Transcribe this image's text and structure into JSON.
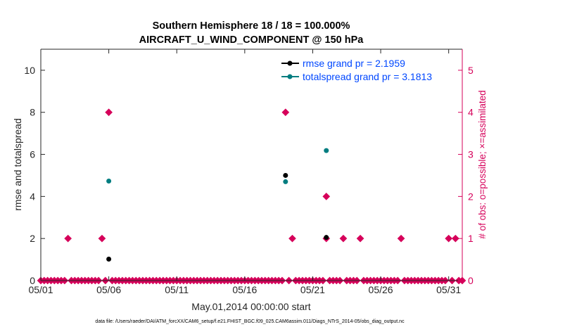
{
  "chart_data": {
    "type": "scatter",
    "title": "Southern Hemisphere 18 / 18 = 100.000%",
    "subtitle": "AIRCRAFT_U_WIND_COMPONENT @ 150 hPa",
    "xlabel": "May.01,2014 00:00:00 start",
    "ylabel_left": "rmse and totalspread",
    "ylabel_right": "# of obs: o=possible; ×=assimilated",
    "footer": "data file: /Users/raeder/DAI/ATM_forcXX/CAM6_setup/f.e21.FHIST_BGC.f09_025.CAM6assim.011/Diags_NTrS_2014-05/obs_diag_output.nc",
    "xlim": [
      1,
      32
    ],
    "ylim_left": [
      0,
      11
    ],
    "ylim_right": [
      0,
      5.5
    ],
    "x_ticks": [
      {
        "value": 1,
        "label": "05/01"
      },
      {
        "value": 6,
        "label": "05/06"
      },
      {
        "value": 11,
        "label": "05/11"
      },
      {
        "value": 16,
        "label": "05/16"
      },
      {
        "value": 21,
        "label": "05/21"
      },
      {
        "value": 26,
        "label": "05/26"
      },
      {
        "value": 31,
        "label": "05/31"
      }
    ],
    "y_ticks_left": [
      "0",
      "2",
      "4",
      "6",
      "8",
      "10"
    ],
    "y_ticks_right": [
      "0",
      "1",
      "2",
      "3",
      "4",
      "5"
    ],
    "legend": [
      {
        "label": "rmse grand pr = 2.1959",
        "color": "#000000"
      },
      {
        "label": "totalspread grand pr = 3.1813",
        "color": "#007d80"
      }
    ],
    "series": [
      {
        "name": "rmse",
        "color": "#000000",
        "points": [
          [
            6.0,
            1.02
          ],
          [
            19.0,
            5.0
          ],
          [
            22.0,
            2.05
          ]
        ]
      },
      {
        "name": "totalspread",
        "color": "#007d80",
        "points": [
          [
            6.0,
            4.73
          ],
          [
            19.0,
            4.7
          ],
          [
            22.0,
            6.18
          ]
        ]
      },
      {
        "name": "obs_count",
        "color": "#d6005a",
        "axis": "right",
        "step": 0.25,
        "nonzero": [
          [
            3.0,
            1
          ],
          [
            5.5,
            1
          ],
          [
            6.0,
            4
          ],
          [
            19.0,
            4
          ],
          [
            19.5,
            1
          ],
          [
            22.0,
            2
          ],
          [
            22.0,
            1
          ],
          [
            23.25,
            1
          ],
          [
            24.5,
            1
          ],
          [
            27.5,
            1
          ],
          [
            31.0,
            1
          ],
          [
            31.5,
            1
          ]
        ]
      }
    ],
    "colors": {
      "axis": "#262626",
      "right_axis": "#d6005a",
      "legend_text": "#0047ff",
      "frame": "#262626"
    }
  }
}
